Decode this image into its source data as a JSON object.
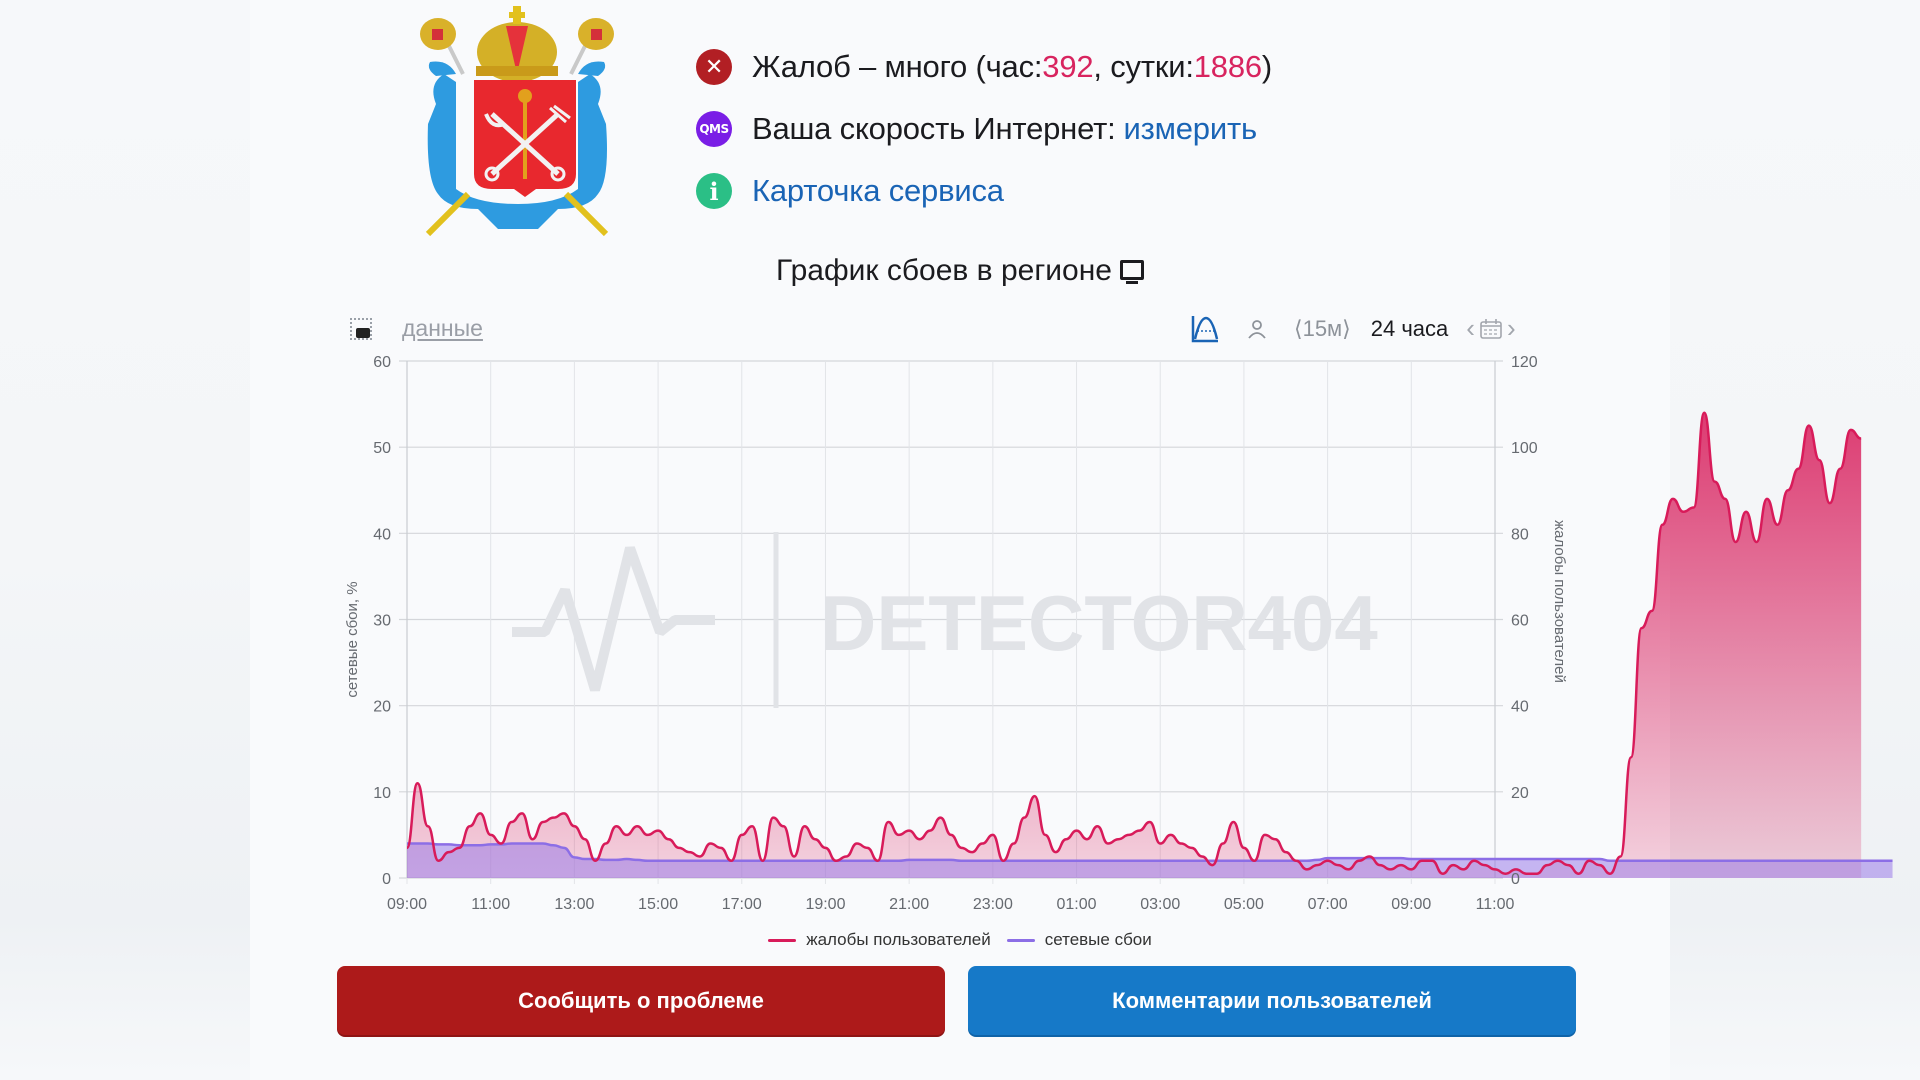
{
  "header": {
    "status": {
      "icon": "error-x-icon",
      "prefix": "Жалоб – много (час: ",
      "hour_count": "392",
      "mid": ", сутки: ",
      "day_count": "1886",
      "suffix": ")"
    },
    "speed": {
      "icon": "qms-icon",
      "icon_text": "QMS",
      "label": "Ваша скорость Интернет: ",
      "link": "измерить"
    },
    "service_card": {
      "icon": "info-icon",
      "icon_text": "i",
      "link": "Карточка сервиса"
    },
    "coat_of_arms": "saint-petersburg-coat-of-arms"
  },
  "chart_section": {
    "title": "График сбоев в регионе",
    "title_icon": "tv-icon",
    "toolbar": {
      "screenshot_icon": "camera-icon",
      "data_link": "данные",
      "chart_type_icon": "area-chart-icon",
      "user_icon": "user-icon",
      "interval": "⟨15м⟩",
      "range": "24 часа",
      "prev": "‹",
      "calendar_icon": "calendar-icon",
      "next": "›"
    },
    "watermark": "DETECTOR404"
  },
  "colors": {
    "complaints": "#d81b5a",
    "network": "#8c6ee6",
    "report_button": "#ad1a1a",
    "comments_button": "#1679c8",
    "link": "#1a64b5",
    "count": "#d8245f"
  },
  "legend": [
    {
      "label": "жалобы пользователей",
      "color": "#d81b5a"
    },
    {
      "label": "сетевые сбои",
      "color": "#8c6ee6"
    }
  ],
  "buttons": {
    "report": "Сообщить о проблеме",
    "comments": "Комментарии пользователей"
  },
  "chart_data": {
    "type": "area",
    "title": "График сбоев в регионе",
    "xlabel": "",
    "ylabel_left": "сетевые сбои, %",
    "ylabel_right": "жалобы пользователей",
    "ylim_left": [
      0,
      60
    ],
    "ylim_right": [
      0,
      120
    ],
    "yticks_left": [
      0,
      10,
      20,
      30,
      40,
      50,
      60
    ],
    "yticks_right": [
      0,
      20,
      40,
      60,
      80,
      100,
      120
    ],
    "xticks": [
      "09:00",
      "11:00",
      "13:00",
      "15:00",
      "17:00",
      "19:00",
      "21:00",
      "23:00",
      "01:00",
      "03:00",
      "05:00",
      "07:00",
      "09:00",
      "11:00"
    ],
    "x_range_hours": [
      0,
      26
    ],
    "grid": true,
    "legend_position": "bottom",
    "interval_minutes": 15,
    "series": [
      {
        "name": "жалобы пользователей",
        "axis": "right",
        "start": "09:00",
        "values": [
          7,
          22,
          12,
          4,
          6,
          7,
          12,
          15,
          10,
          8,
          13,
          15,
          9,
          13,
          14,
          15,
          12,
          9,
          4,
          8,
          12,
          10,
          12,
          10,
          11,
          9,
          7,
          6,
          5,
          8,
          7,
          4,
          10,
          12,
          4,
          14,
          12,
          5,
          12,
          9,
          7,
          4,
          5,
          8,
          7,
          4,
          13,
          10,
          11,
          9,
          11,
          14,
          10,
          7,
          6,
          8,
          10,
          4,
          8,
          14,
          19,
          10,
          6,
          9,
          11,
          9,
          12,
          8,
          9,
          10,
          11,
          13,
          8,
          10,
          8,
          7,
          5,
          3,
          8,
          13,
          7,
          4,
          10,
          9,
          6,
          4,
          2,
          3,
          4,
          3,
          2,
          4,
          5,
          3,
          2,
          3,
          2,
          4,
          4,
          1,
          3,
          2,
          4,
          3,
          2,
          1,
          2,
          1,
          1,
          3,
          4,
          3,
          1,
          4,
          3,
          1,
          5,
          28,
          58,
          62,
          82,
          88,
          85,
          86,
          108,
          92,
          88,
          78,
          85,
          78,
          88,
          82,
          90,
          95,
          105,
          97,
          87,
          95,
          104,
          102
        ],
        "color": "#d81b5a"
      },
      {
        "name": "сетевые сбои",
        "axis": "left",
        "start": "09:00",
        "values": [
          4,
          4,
          4,
          3.9,
          3.9,
          3.8,
          3.8,
          3.8,
          3.9,
          3.9,
          4,
          4,
          4,
          4,
          3.8,
          3.5,
          2.4,
          2.2,
          2.2,
          2.1,
          2.1,
          2.2,
          2.1,
          2,
          2,
          2,
          2,
          2,
          2,
          2,
          2,
          2,
          2,
          2,
          2,
          2,
          2,
          2,
          2,
          2,
          2,
          2,
          2,
          2,
          2,
          2,
          2,
          2,
          2.1,
          2.1,
          2.1,
          2.1,
          2.1,
          2,
          2,
          2,
          2,
          2,
          2,
          2,
          2,
          2,
          2,
          2,
          2,
          2,
          2,
          2,
          2,
          2,
          2,
          2,
          2,
          2,
          2,
          2,
          2,
          2,
          2,
          2,
          2,
          2,
          2,
          2,
          2,
          2,
          2,
          2.1,
          2.3,
          2.3,
          2.3,
          2.3,
          2.3,
          2.3,
          2.3,
          2.3,
          2.2,
          2.2,
          2.2,
          2.2,
          2.2,
          2.2,
          2.2,
          2.2,
          2.2,
          2.2,
          2.2,
          2.2,
          2.2,
          2.2,
          2.2,
          2.2,
          2.2,
          2.2,
          2.2,
          2,
          2,
          2,
          2,
          2,
          2,
          2,
          2,
          2,
          2,
          2,
          2,
          2,
          2,
          2,
          2,
          2,
          2,
          2,
          2,
          2,
          2,
          2,
          2,
          2,
          2,
          2,
          2
        ],
        "color": "#8c6ee6"
      }
    ]
  }
}
